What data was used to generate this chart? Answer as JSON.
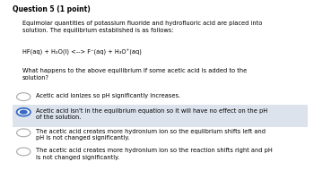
{
  "title": "Question 5 (1 point)",
  "paragraph": "Equimolar quantities of potassium fluoride and hydrofluoric acid are placed into\nsolution. The equilibrium established is as follows:",
  "equation": "HF(aq) + H₂O(l) <--> F⁻(aq) + H₃O⁺(aq)",
  "question": "What happens to the above equilibrium if some acetic acid is added to the\nsolution?",
  "options": [
    "Acetic acid ionizes so pH significantly increases.",
    "Acetic acid isn't in the equilbrium equation so it will have no effect on the pH\nof the solution.",
    "The acetic acid creates more hydronium ion so the equlibrium shifts left and\npH is not changed significantly.",
    "The acetic acid creates more hydronium ion so the reaction shifts right and pH\nis not changed significantly."
  ],
  "selected_option": 1,
  "background_color": "#ffffff",
  "highlight_color": "#dce3ed",
  "text_color": "#000000",
  "title_fontsize": 5.5,
  "body_fontsize": 4.8,
  "option_fontsize": 4.8
}
